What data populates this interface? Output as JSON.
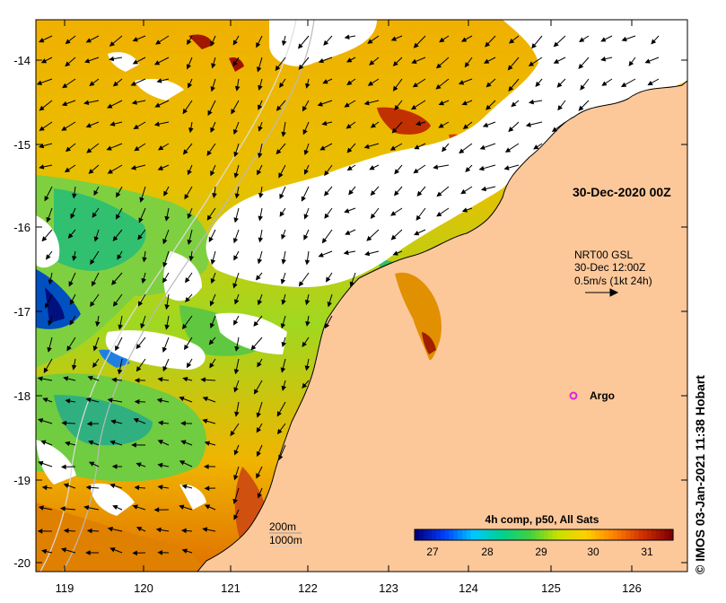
{
  "map": {
    "date_label": "30-Dec-2020 00Z",
    "current_info": {
      "line1": "NRT00 GSL",
      "line2": "30-Dec 12:00Z",
      "line3": "0.5m/s (1kt 24h)"
    },
    "argo_label": "Argo",
    "depth_contours": [
      "200m",
      "1000m"
    ],
    "colorbar": {
      "title": "4h comp, p50, All Sats",
      "ticks": [
        "27",
        "28",
        "29",
        "30",
        "31"
      ],
      "range": [
        26.5,
        31.5
      ],
      "colors": [
        "#00007f",
        "#0040ff",
        "#00c8ff",
        "#00d090",
        "#40d040",
        "#c8e000",
        "#ffd000",
        "#ff8000",
        "#d03000",
        "#7f0000"
      ]
    },
    "x_ticks": [
      "119",
      "120",
      "121",
      "122",
      "123",
      "124",
      "125",
      "126"
    ],
    "y_ticks": [
      "-14",
      "-15",
      "-16",
      "-17",
      "-18",
      "-19",
      "-20"
    ],
    "credit": "© IMOS 03-Jan-2021 11:38 Hobart",
    "colors": {
      "land": "#fcc89a",
      "cloud": "#ffffff",
      "argo": "#e020e0"
    }
  }
}
